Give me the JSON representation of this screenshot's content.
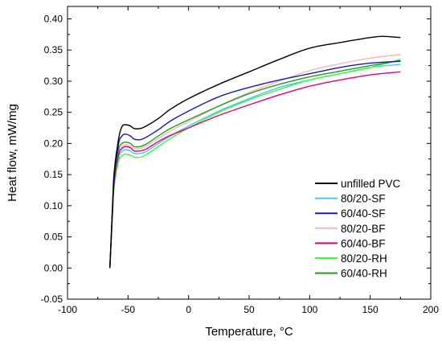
{
  "chart_data": {
    "type": "line",
    "title": "",
    "xlabel": "Temperature, °C",
    "ylabel": "Heat flow, mW/mg",
    "xlim": [
      -100,
      200
    ],
    "ylim": [
      -0.05,
      0.42
    ],
    "xticks": [
      -100,
      -50,
      0,
      50,
      100,
      150,
      200
    ],
    "xtick_labels": [
      "-100",
      "-50",
      "0",
      "50",
      "100",
      "150",
      "200"
    ],
    "yticks": [
      -0.05,
      0.0,
      0.05,
      0.1,
      0.15,
      0.2,
      0.25,
      0.3,
      0.35,
      0.4
    ],
    "ytick_labels": [
      "-0.05",
      "0.00",
      "0.05",
      "0.10",
      "0.15",
      "0.20",
      "0.25",
      "0.30",
      "0.35",
      "0.40"
    ],
    "grid": false,
    "legend_position": "bottom-right",
    "series": [
      {
        "name": "unfilled PVC",
        "color": "#000000",
        "points": [
          [
            -65,
            0.0
          ],
          [
            -62,
            0.14
          ],
          [
            -58,
            0.205
          ],
          [
            -55,
            0.227
          ],
          [
            -52,
            0.23
          ],
          [
            -48,
            0.228
          ],
          [
            -45,
            0.224
          ],
          [
            -40,
            0.224
          ],
          [
            -35,
            0.228
          ],
          [
            -25,
            0.24
          ],
          [
            -15,
            0.255
          ],
          [
            0,
            0.272
          ],
          [
            25,
            0.295
          ],
          [
            50,
            0.315
          ],
          [
            75,
            0.335
          ],
          [
            100,
            0.353
          ],
          [
            125,
            0.362
          ],
          [
            150,
            0.37
          ],
          [
            160,
            0.372
          ],
          [
            175,
            0.37
          ]
        ]
      },
      {
        "name": "80/20-SF",
        "color": "#4fc3f7",
        "points": [
          [
            -65,
            0.0
          ],
          [
            -62,
            0.12
          ],
          [
            -58,
            0.175
          ],
          [
            -55,
            0.187
          ],
          [
            -52,
            0.19
          ],
          [
            -48,
            0.188
          ],
          [
            -45,
            0.184
          ],
          [
            -40,
            0.184
          ],
          [
            -35,
            0.187
          ],
          [
            -25,
            0.2
          ],
          [
            -15,
            0.212
          ],
          [
            0,
            0.228
          ],
          [
            25,
            0.252
          ],
          [
            50,
            0.272
          ],
          [
            75,
            0.29
          ],
          [
            100,
            0.302
          ],
          [
            125,
            0.312
          ],
          [
            150,
            0.322
          ],
          [
            175,
            0.327
          ]
        ]
      },
      {
        "name": "60/40-SF",
        "color": "#1a1ab0",
        "points": [
          [
            -65,
            0.0
          ],
          [
            -62,
            0.13
          ],
          [
            -58,
            0.197
          ],
          [
            -55,
            0.212
          ],
          [
            -52,
            0.215
          ],
          [
            -48,
            0.212
          ],
          [
            -45,
            0.207
          ],
          [
            -40,
            0.206
          ],
          [
            -35,
            0.21
          ],
          [
            -25,
            0.222
          ],
          [
            -15,
            0.236
          ],
          [
            0,
            0.252
          ],
          [
            25,
            0.275
          ],
          [
            50,
            0.29
          ],
          [
            75,
            0.302
          ],
          [
            100,
            0.312
          ],
          [
            125,
            0.322
          ],
          [
            150,
            0.329
          ],
          [
            175,
            0.332
          ]
        ]
      },
      {
        "name": "80/20-BF",
        "color": "#f7b7b7",
        "points": [
          [
            -65,
            0.0
          ],
          [
            -62,
            0.125
          ],
          [
            -58,
            0.182
          ],
          [
            -55,
            0.195
          ],
          [
            -52,
            0.198
          ],
          [
            -48,
            0.196
          ],
          [
            -45,
            0.192
          ],
          [
            -40,
            0.192
          ],
          [
            -35,
            0.196
          ],
          [
            -25,
            0.208
          ],
          [
            -15,
            0.22
          ],
          [
            0,
            0.235
          ],
          [
            25,
            0.26
          ],
          [
            50,
            0.282
          ],
          [
            75,
            0.3
          ],
          [
            100,
            0.317
          ],
          [
            125,
            0.328
          ],
          [
            150,
            0.337
          ],
          [
            175,
            0.343
          ]
        ]
      },
      {
        "name": "60/40-BF",
        "color": "#e6007a",
        "points": [
          [
            -65,
            0.0
          ],
          [
            -62,
            0.125
          ],
          [
            -58,
            0.18
          ],
          [
            -55,
            0.192
          ],
          [
            -52,
            0.195
          ],
          [
            -48,
            0.193
          ],
          [
            -45,
            0.188
          ],
          [
            -40,
            0.188
          ],
          [
            -35,
            0.191
          ],
          [
            -25,
            0.203
          ],
          [
            -15,
            0.213
          ],
          [
            0,
            0.225
          ],
          [
            25,
            0.245
          ],
          [
            50,
            0.262
          ],
          [
            75,
            0.278
          ],
          [
            100,
            0.292
          ],
          [
            125,
            0.302
          ],
          [
            150,
            0.31
          ],
          [
            175,
            0.315
          ]
        ]
      },
      {
        "name": "80/20-RH",
        "color": "#33ff33",
        "points": [
          [
            -65,
            0.0
          ],
          [
            -62,
            0.12
          ],
          [
            -58,
            0.17
          ],
          [
            -55,
            0.18
          ],
          [
            -52,
            0.183
          ],
          [
            -48,
            0.181
          ],
          [
            -45,
            0.178
          ],
          [
            -40,
            0.178
          ],
          [
            -35,
            0.182
          ],
          [
            -25,
            0.195
          ],
          [
            -15,
            0.208
          ],
          [
            0,
            0.225
          ],
          [
            25,
            0.25
          ],
          [
            50,
            0.27
          ],
          [
            75,
            0.287
          ],
          [
            100,
            0.302
          ],
          [
            125,
            0.312
          ],
          [
            150,
            0.322
          ],
          [
            175,
            0.335
          ]
        ]
      },
      {
        "name": "60/40-RH",
        "color": "#1e9e1e",
        "points": [
          [
            -65,
            0.0
          ],
          [
            -62,
            0.13
          ],
          [
            -58,
            0.188
          ],
          [
            -55,
            0.2
          ],
          [
            -52,
            0.202
          ],
          [
            -48,
            0.2
          ],
          [
            -45,
            0.195
          ],
          [
            -40,
            0.195
          ],
          [
            -35,
            0.199
          ],
          [
            -25,
            0.212
          ],
          [
            -15,
            0.224
          ],
          [
            0,
            0.238
          ],
          [
            25,
            0.26
          ],
          [
            50,
            0.28
          ],
          [
            75,
            0.295
          ],
          [
            100,
            0.307
          ],
          [
            125,
            0.316
          ],
          [
            150,
            0.325
          ],
          [
            175,
            0.333
          ]
        ]
      }
    ]
  }
}
